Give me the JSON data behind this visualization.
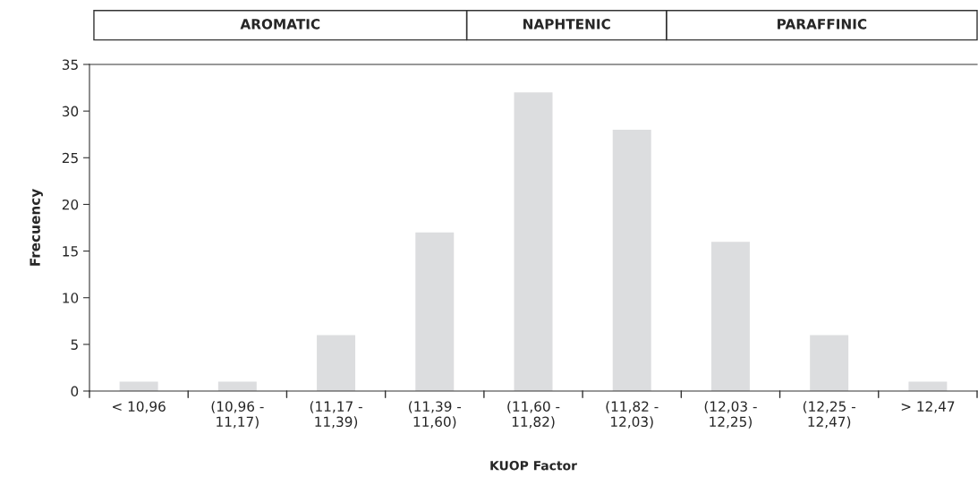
{
  "chart_data": {
    "type": "bar",
    "xlabel": "KUOP Factor",
    "ylabel": "Frecuency",
    "categories": [
      "< 10,96",
      "(10,96 -\n11,17)",
      "(11,17 -\n11,39)",
      "(11,39 -\n11,60)",
      "(11,60 -\n11,82)",
      "(11,82 -\n12,03)",
      "(12,03 -\n12,25)",
      "(12,25 -\n12,47)",
      "> 12,47"
    ],
    "values": [
      1,
      1,
      6,
      17,
      32,
      28,
      16,
      6,
      1
    ],
    "color": "#dcdddf",
    "ylim": [
      0,
      35
    ],
    "yticks": [
      0,
      5,
      10,
      15,
      20,
      25,
      30,
      35
    ],
    "grid": false,
    "legend": false,
    "annotations": [
      "AROMATIC",
      "NAPHTENIC",
      "PARAFFINIC"
    ]
  }
}
